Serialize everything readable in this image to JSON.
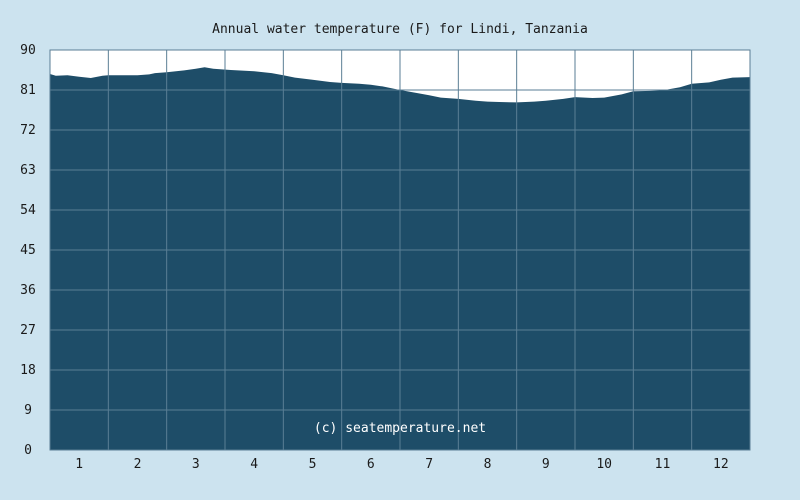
{
  "chart_data": {
    "type": "area",
    "title": "Annual water temperature (F) for Lindi, Tanzania",
    "watermark": "(c) seatemperature.net",
    "xlabel": "",
    "ylabel": "",
    "ylim": [
      0,
      90
    ],
    "yticks": [
      0,
      9,
      18,
      27,
      36,
      45,
      54,
      63,
      72,
      81,
      90
    ],
    "xlim": [
      0.5,
      12.5
    ],
    "xticks": [
      1,
      2,
      3,
      4,
      5,
      6,
      7,
      8,
      9,
      10,
      11,
      12
    ],
    "grid": true,
    "series": [
      {
        "x": [
          0.5,
          0.6,
          0.8,
          1.0,
          1.2,
          1.4,
          1.5,
          1.8,
          2.0,
          2.2,
          2.3,
          2.5,
          2.8,
          3.0,
          3.15,
          3.3,
          3.6,
          4.0,
          4.3,
          4.5,
          4.7,
          5.0,
          5.3,
          5.5,
          5.8,
          6.0,
          6.2,
          6.5,
          6.8,
          7.0,
          7.2,
          7.5,
          7.8,
          8.0,
          8.2,
          8.5,
          8.8,
          9.0,
          9.3,
          9.5,
          9.8,
          10.0,
          10.3,
          10.5,
          10.8,
          11.0,
          11.3,
          11.5,
          11.8,
          12.0,
          12.2,
          12.5
        ],
        "values": [
          84.6,
          84.2,
          84.3,
          84.0,
          83.7,
          84.2,
          84.3,
          84.3,
          84.3,
          84.5,
          84.8,
          85.0,
          85.4,
          85.8,
          86.1,
          85.8,
          85.5,
          85.2,
          84.8,
          84.3,
          83.8,
          83.3,
          82.8,
          82.6,
          82.4,
          82.2,
          81.8,
          81.0,
          80.3,
          79.8,
          79.3,
          79.0,
          78.6,
          78.4,
          78.3,
          78.2,
          78.4,
          78.6,
          79.0,
          79.4,
          79.2,
          79.3,
          80.0,
          80.7,
          80.8,
          80.9,
          81.6,
          82.4,
          82.7,
          83.3,
          83.8,
          83.9
        ]
      }
    ],
    "colors": {
      "background": "#cce3ef",
      "plot_background": "#ffffff",
      "fill": "#1e4d68",
      "grid": "#5a7e95",
      "text": "#1a1a1a",
      "watermark_text": "#ffffff"
    }
  }
}
